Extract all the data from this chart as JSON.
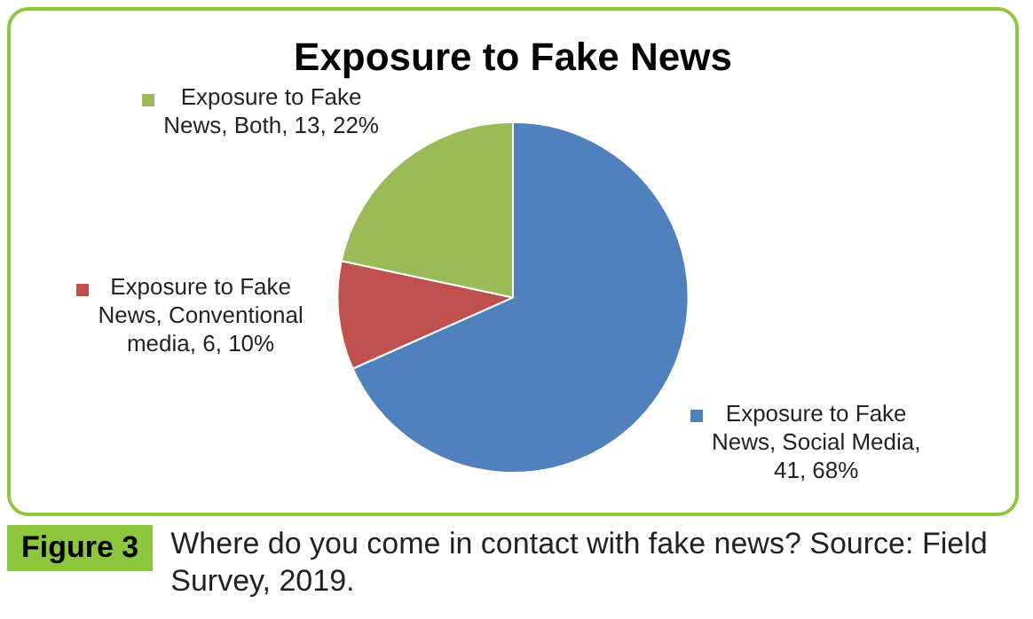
{
  "chart_data": {
    "type": "pie",
    "title": "Exposure to Fake News",
    "categories": [
      null,
      null,
      null
    ],
    "series": [
      {
        "values": [
          41,
          6,
          13
        ],
        "colors": [
          "#4f81bd",
          "#c0504d",
          "#9bbb59"
        ],
        "value_labels": [
          "Exposure to Fake News, Social Media, 41, 68%",
          "Exposure to Fake News, Conventional media, 6, 10%",
          "Exposure to Fake News, Both, 13, 22%"
        ]
      }
    ],
    "legend": false,
    "annotations": [
      "Figure 3",
      "Where do you come in contact with fake news? Source: Field Survey, 2019."
    ]
  }
}
